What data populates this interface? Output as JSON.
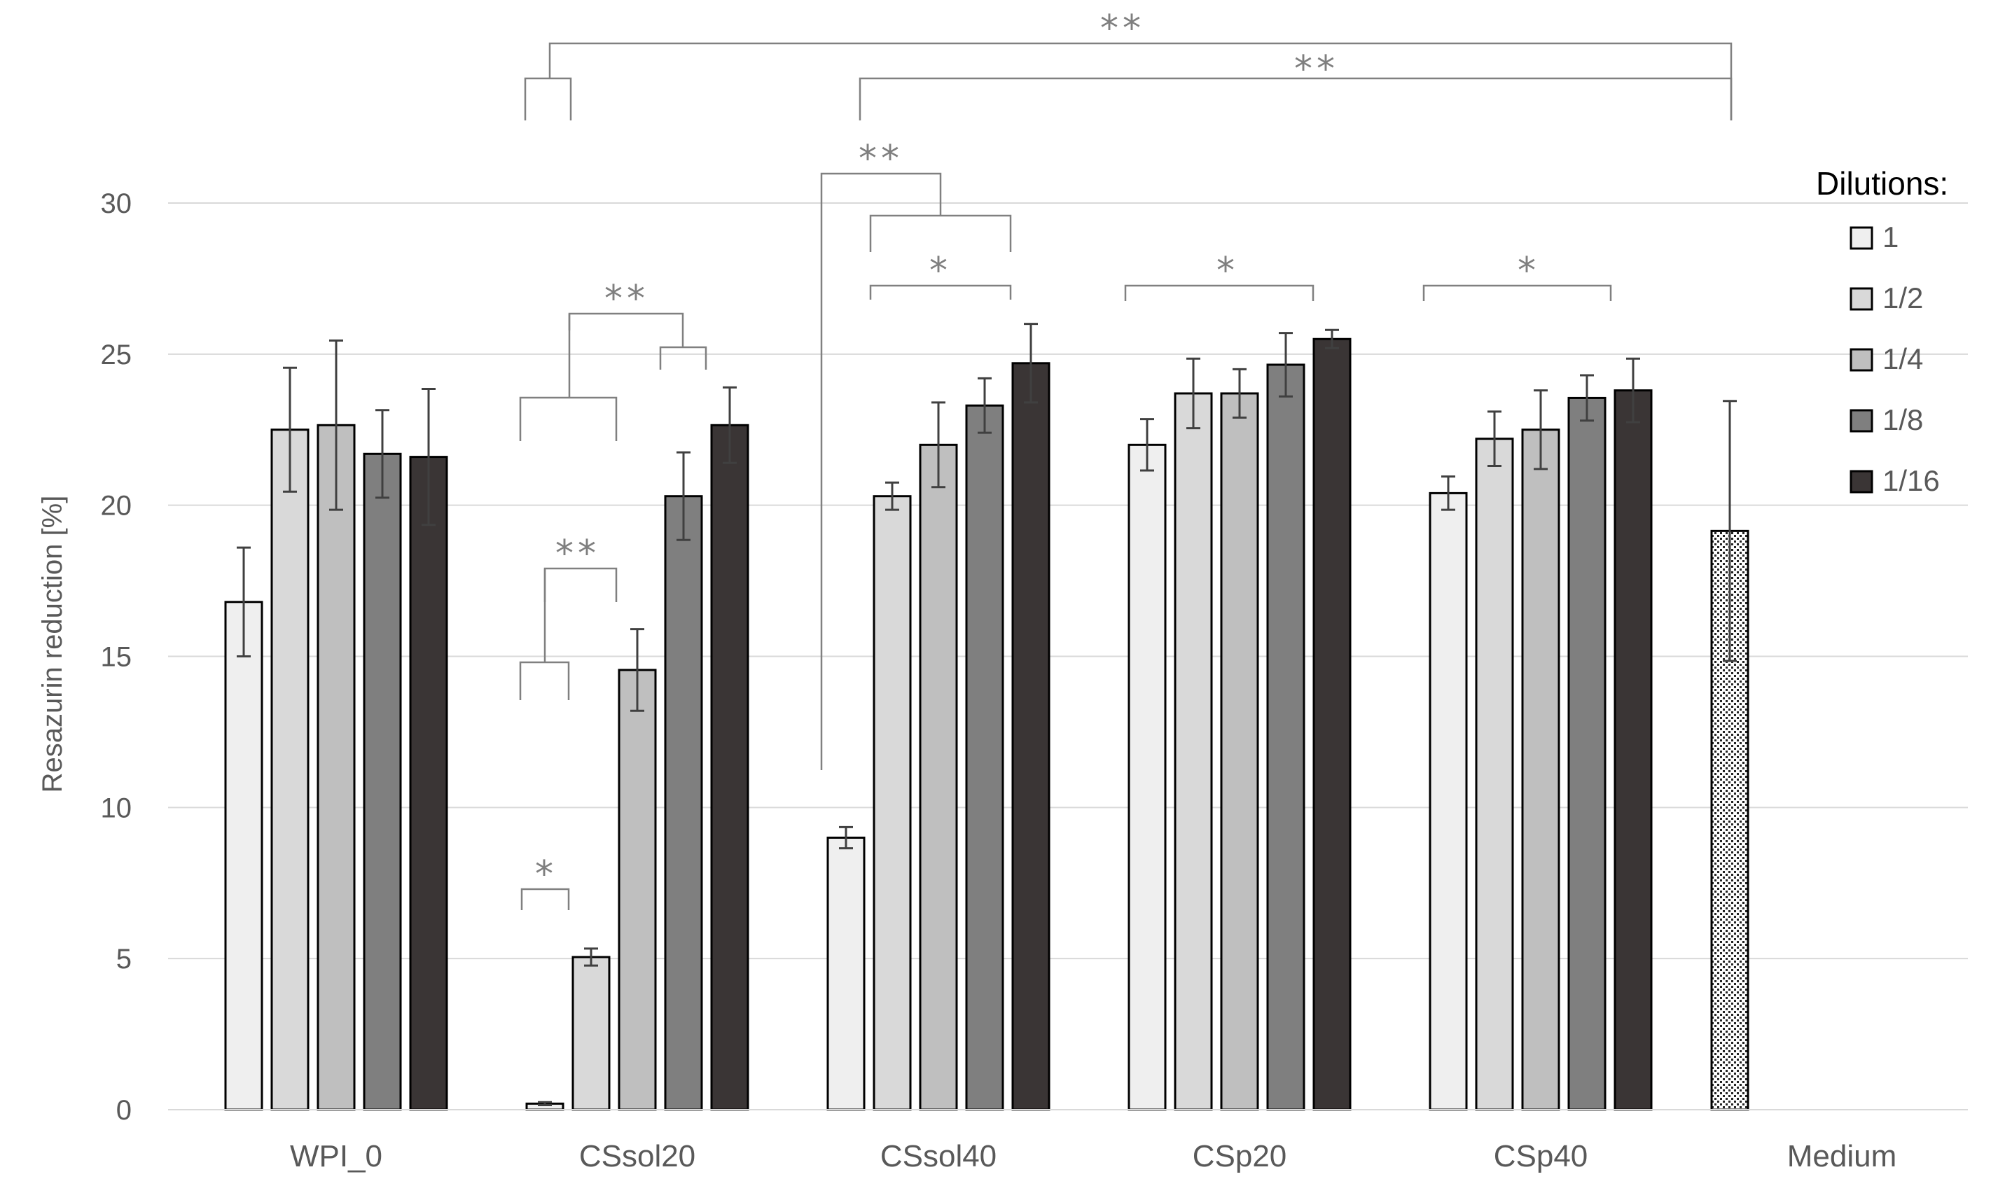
{
  "chart_data": {
    "type": "bar",
    "ylabel": "Resazurin reduction [%]",
    "xlabel": "",
    "ylim": [
      0,
      30
    ],
    "yticks": [
      0,
      5,
      10,
      15,
      20,
      25,
      30
    ],
    "grid": true,
    "categories": [
      "WPI_0",
      "CSsol20",
      "CSsol40",
      "CSp20",
      "CSp40",
      "Medium"
    ],
    "legend": {
      "title": "Dilutions:",
      "placement": "right"
    },
    "series": [
      {
        "name": "1",
        "fill": "#efefef",
        "values": [
          16.8,
          0.2,
          9.0,
          22.0,
          20.4,
          null
        ],
        "errors": [
          1.8,
          0.05,
          0.35,
          0.85,
          0.55,
          null
        ]
      },
      {
        "name": "1/2",
        "fill": "#d9d9d9",
        "values": [
          22.5,
          5.05,
          20.3,
          23.7,
          22.2,
          null
        ],
        "errors": [
          2.05,
          0.28,
          0.45,
          1.15,
          0.9,
          null
        ]
      },
      {
        "name": "1/4",
        "fill": "#bfbfbf",
        "values": [
          22.65,
          14.55,
          22.0,
          23.7,
          22.5,
          null
        ],
        "errors": [
          2.8,
          1.35,
          1.4,
          0.8,
          1.3,
          null
        ]
      },
      {
        "name": "1/8",
        "fill": "#7f7f7f",
        "values": [
          21.7,
          20.3,
          23.3,
          24.65,
          23.55,
          null
        ],
        "errors": [
          1.45,
          1.45,
          0.9,
          1.05,
          0.75,
          null
        ]
      },
      {
        "name": "1/16",
        "fill": "#3a3535",
        "values": [
          21.6,
          22.65,
          24.7,
          25.5,
          23.8,
          null
        ],
        "errors": [
          2.25,
          1.25,
          1.3,
          0.3,
          1.05,
          null
        ]
      }
    ],
    "control": {
      "category": "Medium",
      "value": 19.15,
      "error": 4.3,
      "pattern": "dotted"
    },
    "significance": [
      {
        "label": "**",
        "between": [
          "CSsol20 1",
          "Medium"
        ]
      },
      {
        "label": "**",
        "between": [
          "CSsol40 1/2",
          "Medium"
        ]
      },
      {
        "label": "**",
        "between": [
          "CSsol40 1",
          "CSsol40 1/2 - 1/16"
        ]
      },
      {
        "label": "*",
        "between": [
          "CSsol40 1/2",
          "CSsol40 1/16"
        ]
      },
      {
        "label": "*",
        "between": [
          "CSp20 1",
          "CSp20 1/16"
        ]
      },
      {
        "label": "*",
        "between": [
          "CSp40 1",
          "CSp40 1/16"
        ]
      },
      {
        "label": "**",
        "between": [
          "CSsol20 1 - 1/4",
          "CSsol20 1/8 - 1/16"
        ]
      },
      {
        "label": "**",
        "between": [
          "CSsol20 1 - 1/2",
          "CSsol20 1/4"
        ]
      },
      {
        "label": "*",
        "between": [
          "CSsol20 1",
          "CSsol20 1/2"
        ]
      }
    ]
  }
}
